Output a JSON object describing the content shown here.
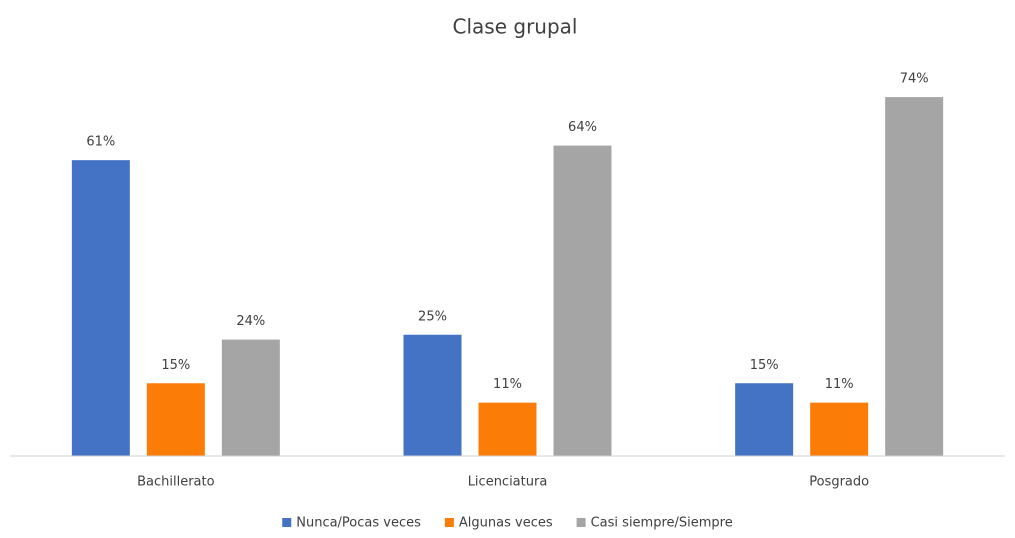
{
  "chart_data": {
    "type": "bar",
    "title": "Clase grupal",
    "categories": [
      "Bachillerato",
      "Licenciatura",
      "Posgrado"
    ],
    "series": [
      {
        "name": "Nunca/Pocas veces",
        "color": "#4472c4",
        "values": [
          61,
          25,
          15
        ],
        "value_labels": [
          "61%",
          "25%",
          "15%"
        ]
      },
      {
        "name": "Algunas veces",
        "color": "#fb7d07",
        "values": [
          15,
          11,
          11
        ],
        "value_labels": [
          "15%",
          "11%",
          "11%"
        ]
      },
      {
        "name": "Casi siempre/Siempre",
        "color": "#a5a5a5",
        "values": [
          24,
          64,
          74
        ],
        "value_labels": [
          "24%",
          "64%",
          "74%"
        ]
      }
    ],
    "ylim": [
      0,
      80
    ],
    "grid": false,
    "legend": "bottom"
  }
}
